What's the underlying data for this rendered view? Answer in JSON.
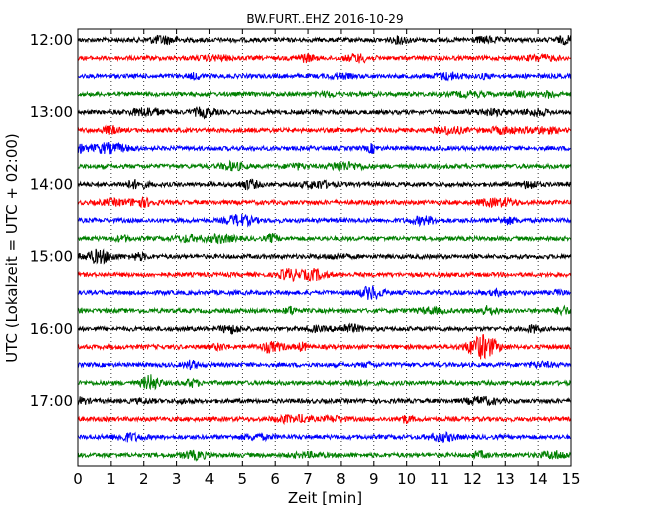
{
  "chart_data": {
    "type": "line",
    "title": "BW.FURT..EHZ 2016-10-29",
    "xlabel": "Zeit  [min]",
    "ylabel": "UTC (Lokalzeit = UTC + 02:00)",
    "xlim": [
      0,
      15
    ],
    "x_ticks": [
      "0",
      "1",
      "2",
      "3",
      "4",
      "5",
      "6",
      "7",
      "8",
      "9",
      "10",
      "11",
      "12",
      "13",
      "14",
      "15"
    ],
    "y_ticks": [
      "12:00",
      "13:00",
      "14:00",
      "15:00",
      "16:00",
      "17:00"
    ],
    "trace_start_times": [
      "12:00",
      "12:15",
      "12:30",
      "12:45",
      "13:00",
      "13:15",
      "13:30",
      "13:45",
      "14:00",
      "14:15",
      "14:30",
      "14:45",
      "15:00",
      "15:15",
      "15:30",
      "15:45",
      "16:00",
      "16:15",
      "16:30",
      "16:45",
      "17:00",
      "17:15",
      "17:30",
      "17:45"
    ],
    "color_cycle": [
      "#000000",
      "#ff0000",
      "#0000ff",
      "#008000"
    ],
    "grid": "vertical dotted",
    "notable_event": {
      "trace": "16:15",
      "x_range_min": [
        11.0,
        13.4
      ],
      "peak_min": 12.3
    }
  }
}
